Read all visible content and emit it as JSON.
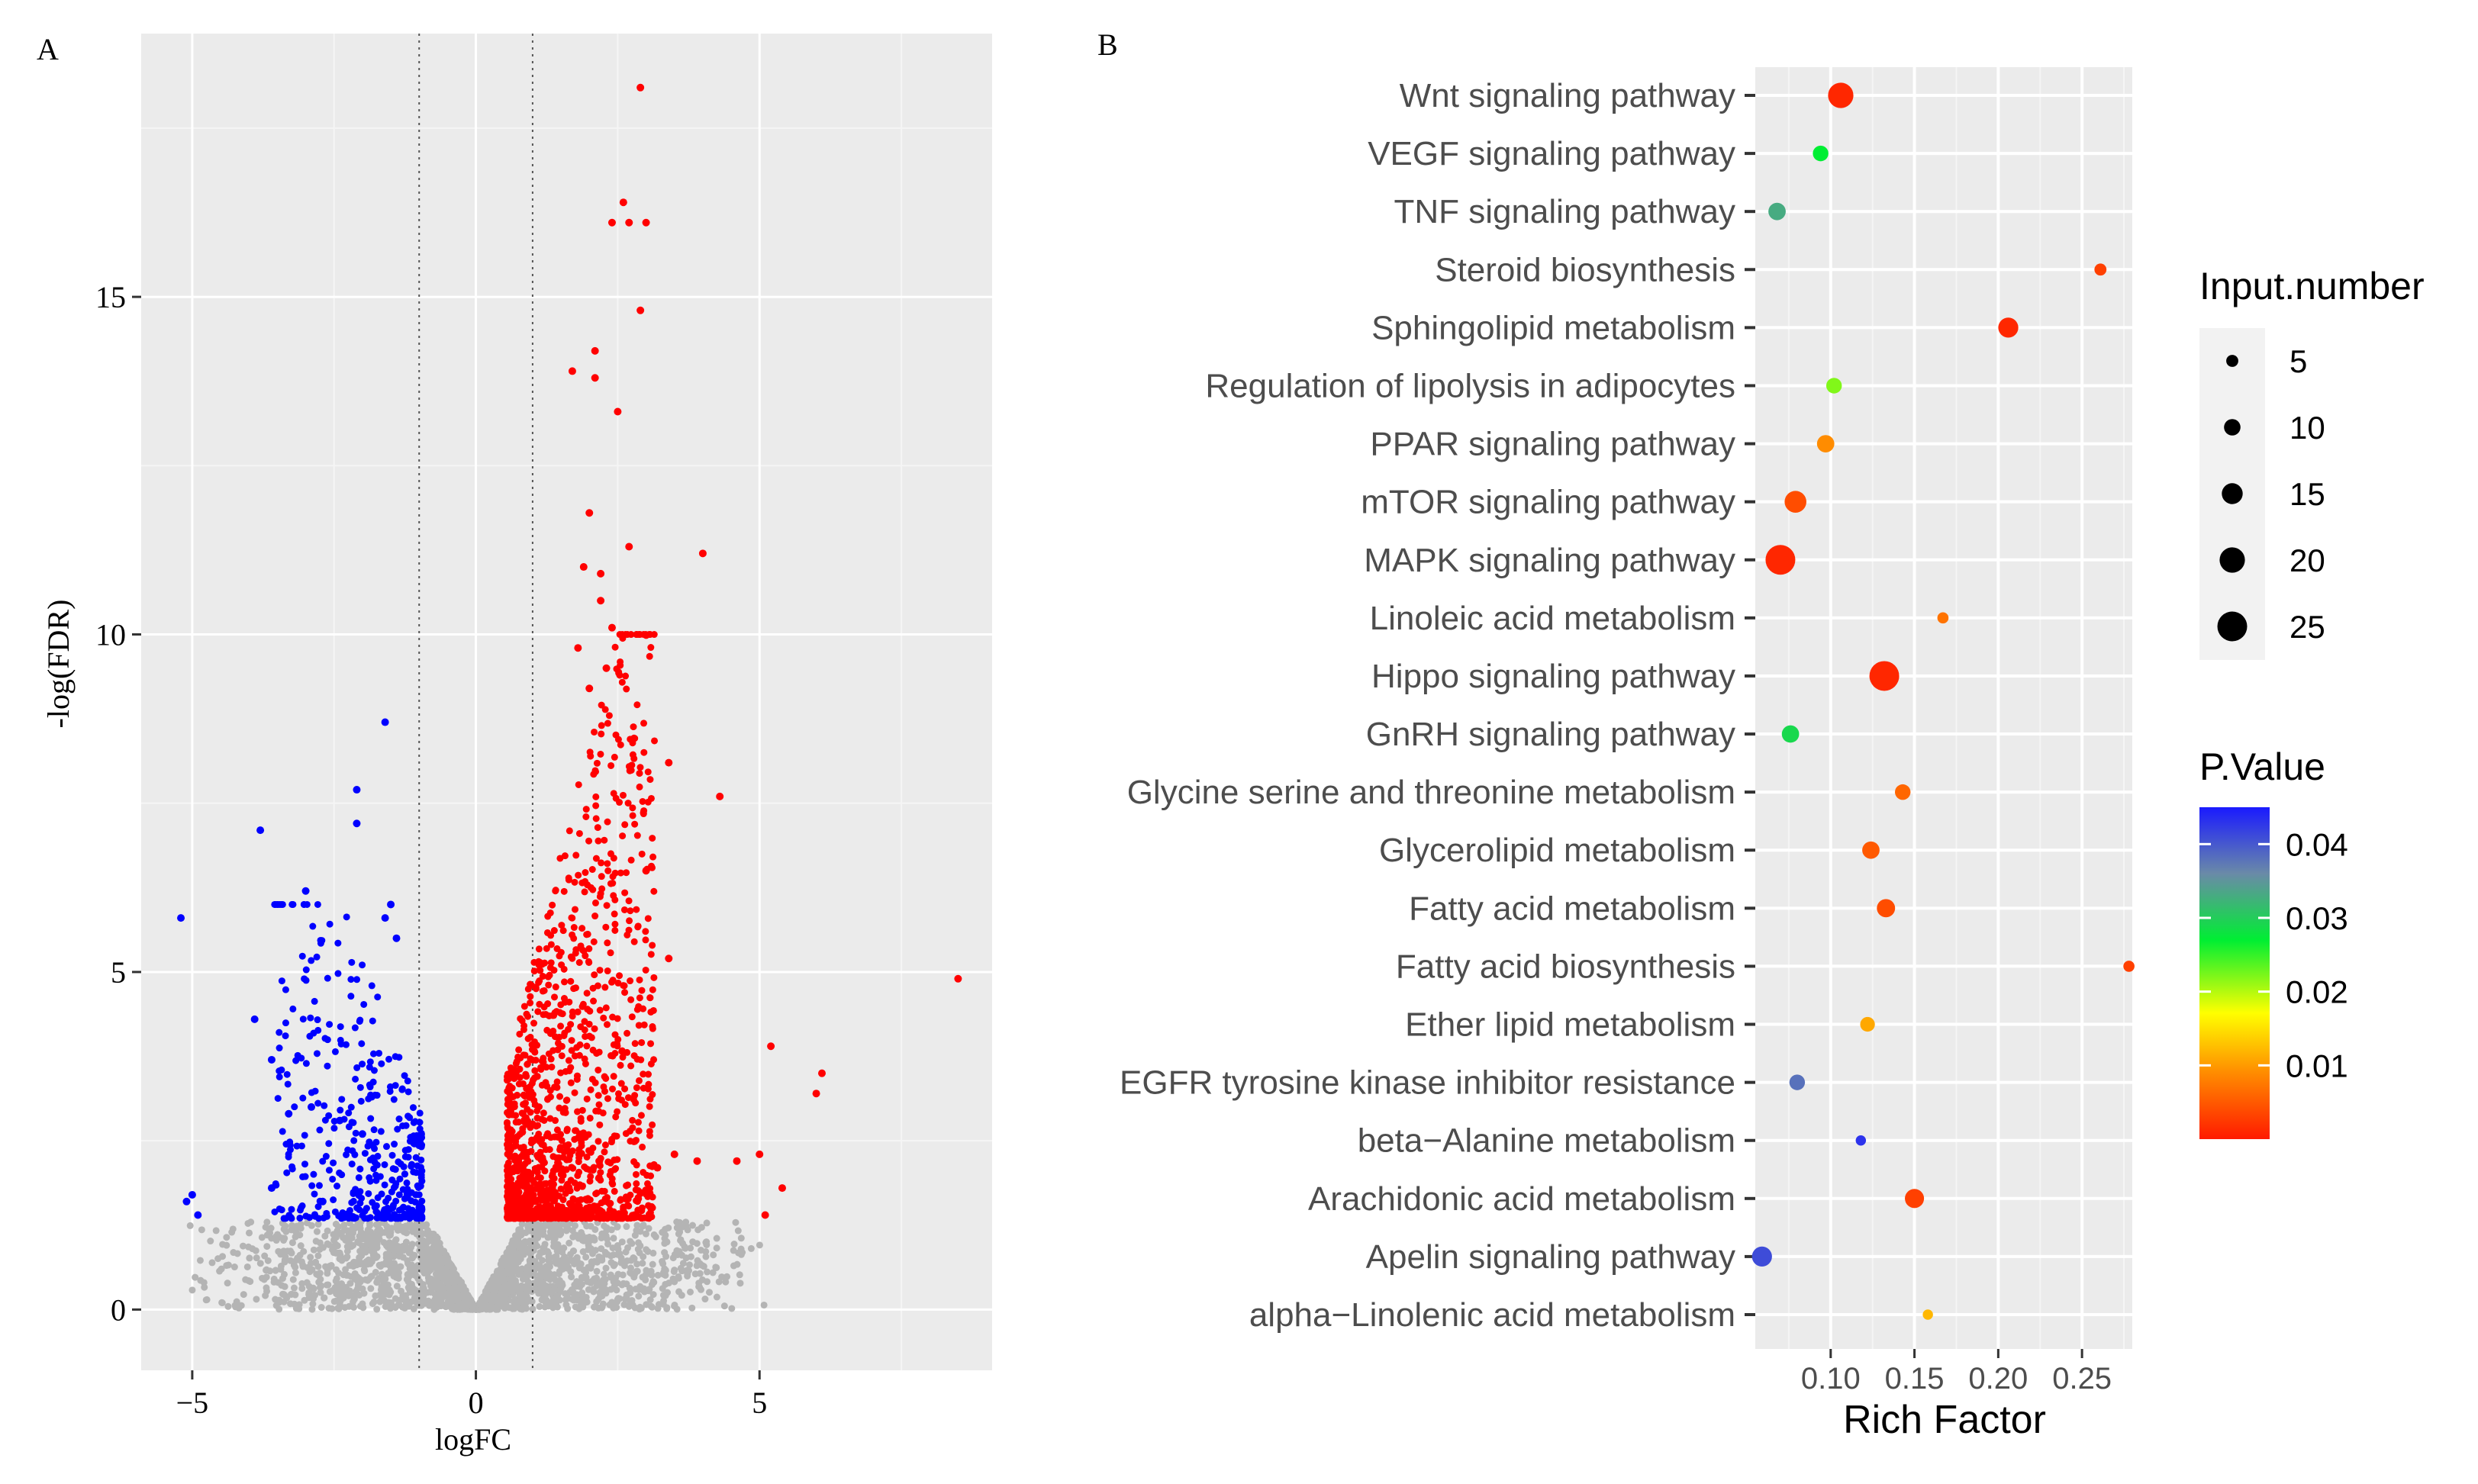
{
  "panels": {
    "a_label": "A",
    "b_label": "B"
  },
  "colors": {
    "panel_bg": "#ebebeb",
    "grid": "#ffffff",
    "up": "#ff0000",
    "down": "#0000ff",
    "ns": "#b4b4b4",
    "axis_text": "#4d4d4d"
  },
  "chart_data": [
    {
      "type": "scatter",
      "subtype": "volcano",
      "xlabel": "logFC",
      "ylabel": "-log(FDR)",
      "xlim": [
        -5.9,
        9.1
      ],
      "ylim": [
        -0.9,
        18.9
      ],
      "x_ticks": [
        -5,
        0,
        5
      ],
      "x_tick_labels": [
        "−5",
        "0",
        "5"
      ],
      "y_ticks": [
        0,
        5,
        10,
        15
      ],
      "y_tick_labels": [
        "0",
        "5",
        "10",
        "15"
      ],
      "threshold_lines_x": [
        -1,
        1
      ],
      "series": [
        {
          "name": "up",
          "color": "#ff0000",
          "points": [
            [
              2.9,
              18.1
            ],
            [
              2.6,
              16.4
            ],
            [
              2.4,
              16.1
            ],
            [
              2.7,
              16.1
            ],
            [
              3.0,
              16.1
            ],
            [
              2.9,
              14.8
            ],
            [
              2.1,
              14.2
            ],
            [
              1.7,
              13.9
            ],
            [
              2.1,
              13.8
            ],
            [
              2.5,
              13.3
            ],
            [
              2.0,
              11.8
            ],
            [
              2.7,
              11.3
            ],
            [
              4.0,
              11.2
            ],
            [
              1.9,
              11.0
            ],
            [
              2.2,
              10.9
            ],
            [
              2.2,
              10.5
            ],
            [
              2.4,
              10.1
            ],
            [
              1.8,
              9.8
            ],
            [
              2.3,
              9.5
            ],
            [
              2.0,
              9.2
            ],
            [
              3.4,
              8.1
            ],
            [
              4.3,
              7.6
            ],
            [
              5.2,
              3.9
            ],
            [
              6.1,
              3.5
            ],
            [
              6.0,
              3.2
            ],
            [
              5.0,
              2.3
            ],
            [
              4.6,
              2.2
            ],
            [
              3.9,
              2.2
            ],
            [
              3.2,
              2.1
            ],
            [
              3.5,
              2.3
            ],
            [
              5.4,
              1.8
            ],
            [
              5.1,
              1.4
            ],
            [
              8.5,
              4.9
            ],
            [
              3.4,
              5.2
            ],
            [
              3.0,
              6.5
            ]
          ]
        },
        {
          "name": "down",
          "color": "#0000ff",
          "points": [
            [
              -1.6,
              8.7
            ],
            [
              -2.1,
              7.7
            ],
            [
              -3.8,
              7.1
            ],
            [
              -2.1,
              7.2
            ],
            [
              -3.0,
              6.2
            ],
            [
              -1.5,
              6.0
            ],
            [
              -1.6,
              5.8
            ],
            [
              -5.2,
              5.8
            ],
            [
              -1.4,
              5.5
            ],
            [
              -3.9,
              4.3
            ],
            [
              -3.6,
              3.7
            ],
            [
              -5.0,
              1.7
            ],
            [
              -5.1,
              1.6
            ],
            [
              -4.9,
              1.4
            ],
            [
              -3.3,
              2.9
            ],
            [
              -2.9,
              3.0
            ],
            [
              -2.4,
              2.8
            ],
            [
              -3.6,
              1.8
            ],
            [
              -2.7,
              1.6
            ],
            [
              -2.0,
              2.6
            ]
          ]
        }
      ]
    },
    {
      "type": "scatter",
      "subtype": "dot-plot",
      "xlabel": "Rich Factor",
      "ylabel": "",
      "xlim": [
        0.055,
        0.28
      ],
      "x_ticks": [
        0.1,
        0.15,
        0.2,
        0.25
      ],
      "x_tick_labels": [
        "0.10",
        "0.15",
        "0.20",
        "0.25"
      ],
      "categories": [
        "alpha−Linolenic acid metabolism",
        "Apelin signaling pathway",
        "Arachidonic acid metabolism",
        "beta−Alanine metabolism",
        "EGFR tyrosine kinase inhibitor resistance",
        "Ether lipid metabolism",
        "Fatty acid biosynthesis",
        "Fatty acid metabolism",
        "Glycerolipid metabolism",
        "Glycine serine and threonine metabolism",
        "GnRH signaling pathway",
        "Hippo signaling pathway",
        "Linoleic acid metabolism",
        "MAPK signaling pathway",
        "mTOR signaling pathway",
        "PPAR signaling pathway",
        "Regulation of lipolysis in adipocytes",
        "Sphingolipid metabolism",
        "Steroid biosynthesis",
        "TNF signaling pathway",
        "VEGF signaling pathway",
        "Wnt signaling pathway"
      ],
      "rich_factor": [
        0.158,
        0.059,
        0.15,
        0.118,
        0.08,
        0.122,
        0.278,
        0.133,
        0.124,
        0.143,
        0.076,
        0.132,
        0.167,
        0.07,
        0.079,
        0.097,
        0.102,
        0.206,
        0.261,
        0.068,
        0.094,
        0.106
      ],
      "input_number": [
        3,
        14,
        13,
        3,
        9,
        8,
        4,
        12,
        11,
        9,
        11,
        25,
        4,
        25,
        16,
        11,
        9,
        14,
        5,
        11,
        9,
        20
      ],
      "p_value": [
        0.012,
        0.041,
        0.003,
        0.043,
        0.038,
        0.011,
        0.003,
        0.004,
        0.005,
        0.006,
        0.029,
        0.001,
        0.007,
        0.001,
        0.004,
        0.009,
        0.022,
        0.001,
        0.003,
        0.033,
        0.027,
        0.001
      ],
      "size_legend": {
        "title": "Input.number",
        "values": [
          5,
          10,
          15,
          20,
          25
        ],
        "labels": [
          "5",
          "10",
          "15",
          "20",
          "25"
        ]
      },
      "color_legend": {
        "title": "P.Value",
        "range": [
          0.0,
          0.045
        ],
        "ticks": [
          0.04,
          0.03,
          0.02,
          0.01
        ],
        "labels": [
          "0.04",
          "0.03",
          "0.02",
          "0.01"
        ]
      }
    }
  ]
}
